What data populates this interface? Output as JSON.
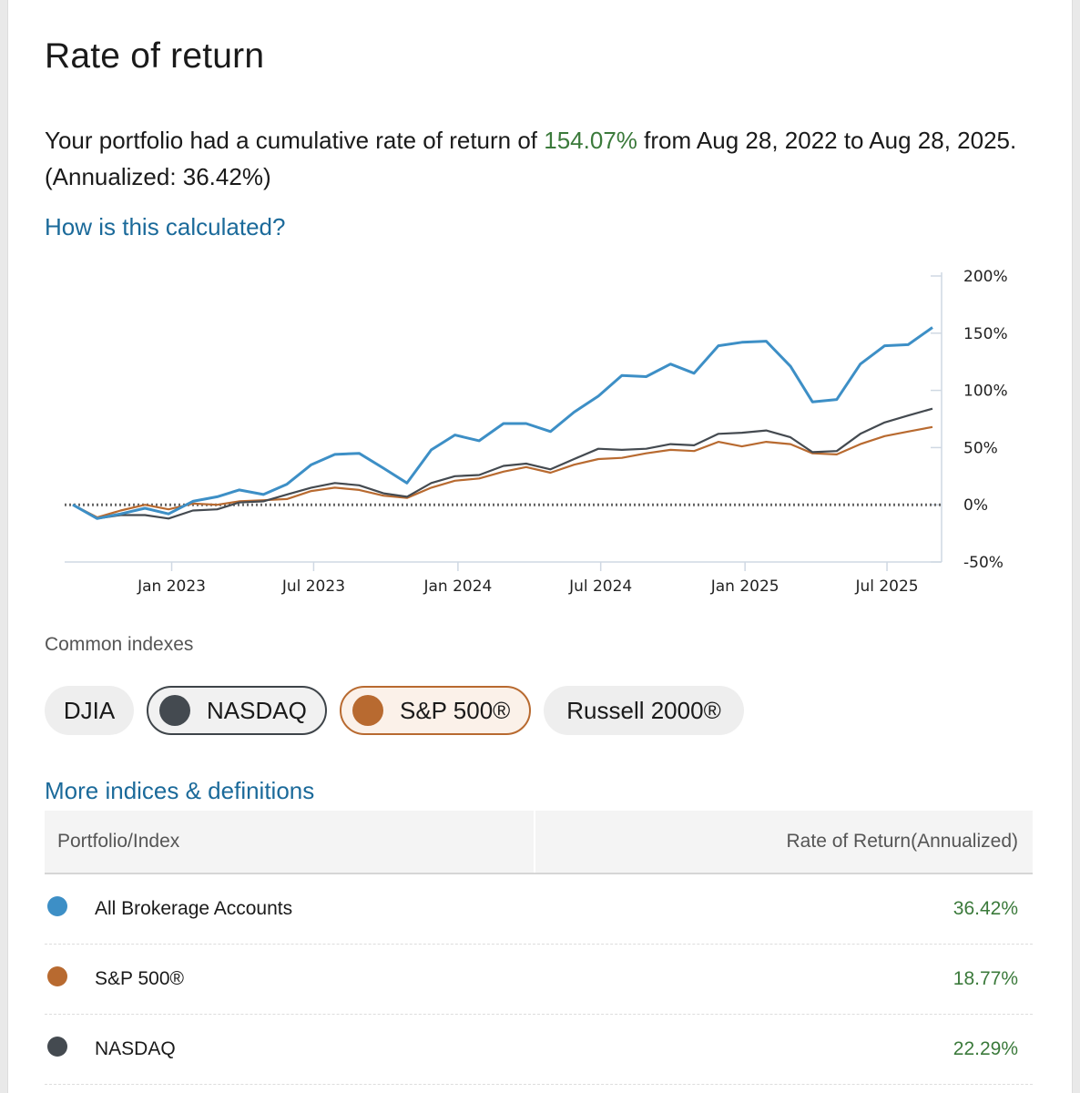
{
  "title": "Rate of return",
  "summary": {
    "prefix": "Your portfolio had a cumulative rate of return of ",
    "cumulative": "154.07%",
    "middle": " from Aug 28, 2022 to Aug 28, 2025. (Annualized: 36.42%)"
  },
  "how_link": "How is this calculated?",
  "colors": {
    "portfolio": "#3d8fc6",
    "nasdaq": "#444a50",
    "sp500": "#b86a30",
    "positive": "#3b7a3b",
    "link": "#1b6a9a"
  },
  "chart_data": {
    "type": "line",
    "x_tick_labels": [
      "Jan 2023",
      "Jul 2023",
      "Jan 2024",
      "Jul 2024",
      "Jan 2025",
      "Jul 2025"
    ],
    "y_tick_labels": [
      "200%",
      "150%",
      "100%",
      "50%",
      "0%",
      "-50%"
    ],
    "ylim": [
      -50,
      200
    ],
    "baseline": 0,
    "series": [
      {
        "name": "All Brokerage Accounts",
        "color": "#3d8fc6",
        "points": [
          [
            "2022-08-28",
            0
          ],
          [
            "2022-09-28",
            -12
          ],
          [
            "2022-10-28",
            -8
          ],
          [
            "2022-11-28",
            -3
          ],
          [
            "2022-12-28",
            -8
          ],
          [
            "2023-01-28",
            3
          ],
          [
            "2023-02-28",
            7
          ],
          [
            "2023-03-28",
            13
          ],
          [
            "2023-04-28",
            9
          ],
          [
            "2023-05-28",
            18
          ],
          [
            "2023-06-28",
            35
          ],
          [
            "2023-07-28",
            44
          ],
          [
            "2023-08-28",
            45
          ],
          [
            "2023-09-28",
            32
          ],
          [
            "2023-10-28",
            19
          ],
          [
            "2023-11-28",
            48
          ],
          [
            "2023-12-28",
            61
          ],
          [
            "2024-01-28",
            56
          ],
          [
            "2024-02-28",
            71
          ],
          [
            "2024-03-28",
            71
          ],
          [
            "2024-04-28",
            64
          ],
          [
            "2024-05-28",
            81
          ],
          [
            "2024-06-28",
            95
          ],
          [
            "2024-07-28",
            113
          ],
          [
            "2024-08-28",
            112
          ],
          [
            "2024-09-28",
            123
          ],
          [
            "2024-10-28",
            115
          ],
          [
            "2024-11-28",
            139
          ],
          [
            "2024-12-28",
            142
          ],
          [
            "2025-01-28",
            143
          ],
          [
            "2025-02-28",
            121
          ],
          [
            "2025-03-28",
            90
          ],
          [
            "2025-04-28",
            92
          ],
          [
            "2025-05-28",
            123
          ],
          [
            "2025-06-28",
            139
          ],
          [
            "2025-07-28",
            140
          ],
          [
            "2025-08-28",
            155
          ]
        ]
      },
      {
        "name": "NASDAQ",
        "color": "#444a50",
        "points": [
          [
            "2022-08-28",
            0
          ],
          [
            "2022-09-28",
            -12
          ],
          [
            "2022-10-28",
            -9
          ],
          [
            "2022-11-28",
            -9
          ],
          [
            "2022-12-28",
            -12
          ],
          [
            "2023-01-28",
            -5
          ],
          [
            "2023-02-28",
            -4
          ],
          [
            "2023-03-28",
            2
          ],
          [
            "2023-04-28",
            3
          ],
          [
            "2023-05-28",
            9
          ],
          [
            "2023-06-28",
            15
          ],
          [
            "2023-07-28",
            19
          ],
          [
            "2023-08-28",
            17
          ],
          [
            "2023-09-28",
            10
          ],
          [
            "2023-10-28",
            7
          ],
          [
            "2023-11-28",
            19
          ],
          [
            "2023-12-28",
            25
          ],
          [
            "2024-01-28",
            26
          ],
          [
            "2024-02-28",
            34
          ],
          [
            "2024-03-28",
            36
          ],
          [
            "2024-04-28",
            31
          ],
          [
            "2024-05-28",
            40
          ],
          [
            "2024-06-28",
            49
          ],
          [
            "2024-07-28",
            48
          ],
          [
            "2024-08-28",
            49
          ],
          [
            "2024-09-28",
            53
          ],
          [
            "2024-10-28",
            52
          ],
          [
            "2024-11-28",
            62
          ],
          [
            "2024-12-28",
            63
          ],
          [
            "2025-01-28",
            65
          ],
          [
            "2025-02-28",
            59
          ],
          [
            "2025-03-28",
            46
          ],
          [
            "2025-04-28",
            47
          ],
          [
            "2025-05-28",
            62
          ],
          [
            "2025-06-28",
            72
          ],
          [
            "2025-07-28",
            78
          ],
          [
            "2025-08-28",
            84
          ]
        ]
      },
      {
        "name": "S&P 500®",
        "color": "#b86a30",
        "points": [
          [
            "2022-08-28",
            0
          ],
          [
            "2022-09-28",
            -11
          ],
          [
            "2022-10-28",
            -5
          ],
          [
            "2022-11-28",
            0
          ],
          [
            "2022-12-28",
            -4
          ],
          [
            "2023-01-28",
            1
          ],
          [
            "2023-02-28",
            0
          ],
          [
            "2023-03-28",
            3
          ],
          [
            "2023-04-28",
            4
          ],
          [
            "2023-05-28",
            5
          ],
          [
            "2023-06-28",
            12
          ],
          [
            "2023-07-28",
            15
          ],
          [
            "2023-08-28",
            13
          ],
          [
            "2023-09-28",
            8
          ],
          [
            "2023-10-28",
            6
          ],
          [
            "2023-11-28",
            15
          ],
          [
            "2023-12-28",
            21
          ],
          [
            "2024-01-28",
            23
          ],
          [
            "2024-02-28",
            29
          ],
          [
            "2024-03-28",
            33
          ],
          [
            "2024-04-28",
            28
          ],
          [
            "2024-05-28",
            35
          ],
          [
            "2024-06-28",
            40
          ],
          [
            "2024-07-28",
            41
          ],
          [
            "2024-08-28",
            45
          ],
          [
            "2024-09-28",
            48
          ],
          [
            "2024-10-28",
            47
          ],
          [
            "2024-11-28",
            55
          ],
          [
            "2024-12-28",
            51
          ],
          [
            "2025-01-28",
            55
          ],
          [
            "2025-02-28",
            53
          ],
          [
            "2025-03-28",
            45
          ],
          [
            "2025-04-28",
            44
          ],
          [
            "2025-05-28",
            53
          ],
          [
            "2025-06-28",
            60
          ],
          [
            "2025-07-28",
            64
          ],
          [
            "2025-08-28",
            68
          ]
        ]
      }
    ]
  },
  "indexes_label": "Common indexes",
  "chips": [
    {
      "label": "DJIA",
      "selected": false,
      "color": ""
    },
    {
      "label": "NASDAQ",
      "selected": true,
      "color": "#444a50"
    },
    {
      "label": "S&P 500®",
      "selected": true,
      "color": "#b86a30"
    },
    {
      "label": "Russell 2000®",
      "selected": false,
      "color": ""
    }
  ],
  "more_link": "More indices & definitions",
  "table": {
    "headers": [
      "Portfolio/Index",
      "Rate of Return(Annualized)"
    ],
    "rows": [
      {
        "name": "All Brokerage Accounts",
        "value": "36.42%",
        "color": "#3d8fc6"
      },
      {
        "name": "S&P 500®",
        "value": "18.77%",
        "color": "#b86a30"
      },
      {
        "name": "NASDAQ",
        "value": "22.29%",
        "color": "#444a50"
      }
    ]
  }
}
